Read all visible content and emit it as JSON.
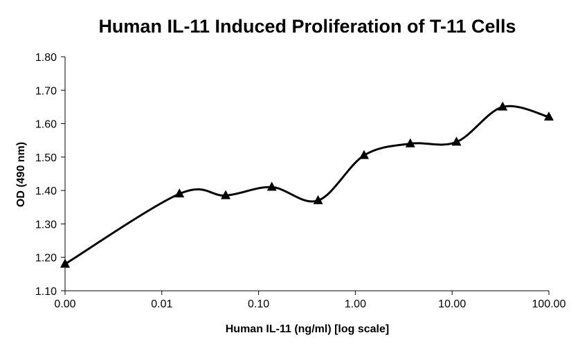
{
  "chart_data": {
    "type": "line",
    "title": "Human IL-11 Induced Proliferation of T-11 Cells",
    "xlabel": "Human IL-11 (ng/ml) [log scale]",
    "ylabel": "OD (490 nm)",
    "x_scale": "log",
    "x_tick_labels": [
      "0.00",
      "0.01",
      "0.10",
      "1.00",
      "10.00",
      "100.00"
    ],
    "y_tick_labels": [
      "1.10",
      "1.20",
      "1.30",
      "1.40",
      "1.50",
      "1.60",
      "1.70",
      "1.80"
    ],
    "ylim": [
      1.1,
      1.8
    ],
    "grid": false,
    "legend": "none",
    "marker": "triangle",
    "line_color": "#000000",
    "series": [
      {
        "x": [
          0.001,
          0.0152,
          0.0457,
          0.137,
          0.412,
          1.23,
          3.7,
          11.1,
          33.3,
          100
        ],
        "y": [
          1.18,
          1.39,
          1.385,
          1.41,
          1.37,
          1.505,
          1.54,
          1.545,
          1.65,
          1.62
        ]
      }
    ]
  }
}
